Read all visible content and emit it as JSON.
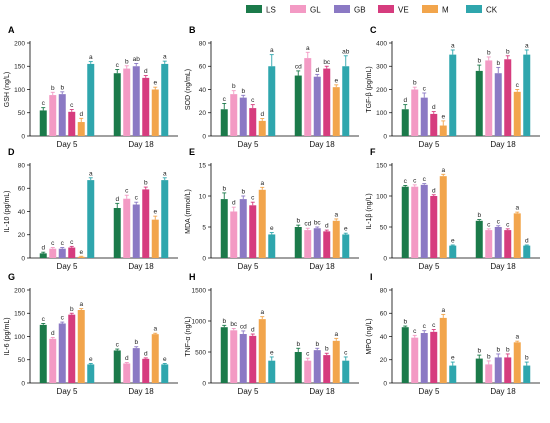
{
  "legend": [
    {
      "name": "LS",
      "color": "#1b7a4a"
    },
    {
      "name": "GL",
      "color": "#f39ac4"
    },
    {
      "name": "GB",
      "color": "#8b79c4"
    },
    {
      "name": "VE",
      "color": "#d63c7e"
    },
    {
      "name": "M",
      "color": "#f2a54c"
    },
    {
      "name": "CK",
      "color": "#2fa6ad"
    }
  ],
  "chart_data": [
    {
      "type": "bar",
      "panel": "A",
      "ylabel": "GSH (ng/L)",
      "categories": [
        "Day 5",
        "Day 18"
      ],
      "ylim": [
        0,
        200
      ],
      "ticks": [
        0,
        50,
        100,
        150,
        200
      ],
      "series": [
        {
          "name": "LS",
          "values": [
            55,
            135
          ],
          "err": [
            6,
            8
          ],
          "sig": [
            "c",
            "c"
          ]
        },
        {
          "name": "GL",
          "values": [
            88,
            145
          ],
          "err": [
            6,
            6
          ],
          "sig": [
            "b",
            "b"
          ]
        },
        {
          "name": "GB",
          "values": [
            90,
            150
          ],
          "err": [
            5,
            6
          ],
          "sig": [
            "b",
            "ab"
          ]
        },
        {
          "name": "VE",
          "values": [
            52,
            125
          ],
          "err": [
            5,
            5
          ],
          "sig": [
            "c",
            "d"
          ]
        },
        {
          "name": "M",
          "values": [
            30,
            100
          ],
          "err": [
            8,
            5
          ],
          "sig": [
            "d",
            "e"
          ]
        },
        {
          "name": "CK",
          "values": [
            155,
            155
          ],
          "err": [
            5,
            6
          ],
          "sig": [
            "a",
            "a"
          ]
        }
      ]
    },
    {
      "type": "bar",
      "panel": "B",
      "ylabel": "SOD (ng/mL)",
      "categories": [
        "Day 5",
        "Day 18"
      ],
      "ylim": [
        0,
        80
      ],
      "ticks": [
        0,
        20,
        40,
        60,
        80
      ],
      "series": [
        {
          "name": "LS",
          "values": [
            23,
            52
          ],
          "err": [
            5,
            4
          ],
          "sig": [
            "c",
            "cd"
          ]
        },
        {
          "name": "GL",
          "values": [
            36,
            67
          ],
          "err": [
            3,
            5
          ],
          "sig": [
            "b",
            "a"
          ]
        },
        {
          "name": "GB",
          "values": [
            33,
            51
          ],
          "err": [
            2,
            2
          ],
          "sig": [
            "b",
            "d"
          ]
        },
        {
          "name": "VE",
          "values": [
            24,
            58
          ],
          "err": [
            3,
            2
          ],
          "sig": [
            "c",
            "bc"
          ]
        },
        {
          "name": "M",
          "values": [
            13,
            42
          ],
          "err": [
            2,
            2
          ],
          "sig": [
            "d",
            "e"
          ]
        },
        {
          "name": "CK",
          "values": [
            60,
            60
          ],
          "err": [
            10,
            9
          ],
          "sig": [
            "a",
            "ab"
          ]
        }
      ]
    },
    {
      "type": "bar",
      "panel": "C",
      "ylabel": "TGF-β (pg/mL)",
      "categories": [
        "Day 5",
        "Day 18"
      ],
      "ylim": [
        0,
        400
      ],
      "ticks": [
        0,
        100,
        200,
        300,
        400
      ],
      "series": [
        {
          "name": "LS",
          "values": [
            115,
            280
          ],
          "err": [
            20,
            25
          ],
          "sig": [
            "d",
            "b"
          ]
        },
        {
          "name": "GL",
          "values": [
            200,
            325
          ],
          "err": [
            10,
            15
          ],
          "sig": [
            "b",
            "b"
          ]
        },
        {
          "name": "GB",
          "values": [
            165,
            270
          ],
          "err": [
            20,
            25
          ],
          "sig": [
            "c",
            "b"
          ]
        },
        {
          "name": "VE",
          "values": [
            95,
            330
          ],
          "err": [
            10,
            15
          ],
          "sig": [
            "d",
            "b"
          ]
        },
        {
          "name": "M",
          "values": [
            45,
            190
          ],
          "err": [
            20,
            10
          ],
          "sig": [
            "e",
            "c"
          ]
        },
        {
          "name": "CK",
          "values": [
            350,
            350
          ],
          "err": [
            20,
            20
          ],
          "sig": [
            "a",
            "a"
          ]
        }
      ]
    },
    {
      "type": "bar",
      "panel": "D",
      "ylabel": "IL-10 (pg/mL)",
      "categories": [
        "Day 5",
        "Day 18"
      ],
      "ylim": [
        0,
        80
      ],
      "ticks": [
        0,
        20,
        40,
        60,
        80
      ],
      "series": [
        {
          "name": "LS",
          "values": [
            4,
            43
          ],
          "err": [
            1,
            4
          ],
          "sig": [
            "d",
            "d"
          ]
        },
        {
          "name": "GL",
          "values": [
            8,
            51
          ],
          "err": [
            1,
            3
          ],
          "sig": [
            "c",
            "c"
          ]
        },
        {
          "name": "GB",
          "values": [
            8,
            46
          ],
          "err": [
            1,
            2
          ],
          "sig": [
            "c",
            "c"
          ]
        },
        {
          "name": "VE",
          "values": [
            9,
            59
          ],
          "err": [
            1,
            2
          ],
          "sig": [
            "c",
            "b"
          ]
        },
        {
          "name": "M",
          "values": [
            1,
            33
          ],
          "err": [
            0.5,
            3
          ],
          "sig": [
            "e",
            "e"
          ]
        },
        {
          "name": "CK",
          "values": [
            67,
            67
          ],
          "err": [
            2,
            2
          ],
          "sig": [
            "a",
            "a"
          ]
        }
      ]
    },
    {
      "type": "bar",
      "panel": "E",
      "ylabel": "MDA (mmol/L)",
      "categories": [
        "Day 5",
        "Day 18"
      ],
      "ylim": [
        0,
        15
      ],
      "ticks": [
        0,
        5,
        10,
        15
      ],
      "series": [
        {
          "name": "LS",
          "values": [
            9.5,
            5.0
          ],
          "err": [
            1.0,
            0.3
          ],
          "sig": [
            "b",
            "b"
          ]
        },
        {
          "name": "GL",
          "values": [
            7.5,
            4.5
          ],
          "err": [
            0.7,
            0.3
          ],
          "sig": [
            "d",
            "cd"
          ]
        },
        {
          "name": "GB",
          "values": [
            9.5,
            4.8
          ],
          "err": [
            0.5,
            0.2
          ],
          "sig": [
            "b",
            "bc"
          ]
        },
        {
          "name": "VE",
          "values": [
            8.5,
            4.3
          ],
          "err": [
            0.5,
            0.2
          ],
          "sig": [
            "c",
            "d"
          ]
        },
        {
          "name": "M",
          "values": [
            11.0,
            6.0
          ],
          "err": [
            0.4,
            0.3
          ],
          "sig": [
            "a",
            "a"
          ]
        },
        {
          "name": "CK",
          "values": [
            3.8,
            3.8
          ],
          "err": [
            0.3,
            0.2
          ],
          "sig": [
            "e",
            "e"
          ]
        }
      ]
    },
    {
      "type": "bar",
      "panel": "F",
      "ylabel": "IL-1β (ng/L)",
      "categories": [
        "Day 5",
        "Day 18"
      ],
      "ylim": [
        0,
        150
      ],
      "ticks": [
        0,
        50,
        100,
        150
      ],
      "series": [
        {
          "name": "LS",
          "values": [
            115,
            60
          ],
          "err": [
            2,
            2
          ],
          "sig": [
            "c",
            "b"
          ]
        },
        {
          "name": "GL",
          "values": [
            115,
            45
          ],
          "err": [
            3,
            2
          ],
          "sig": [
            "c",
            "c"
          ]
        },
        {
          "name": "GB",
          "values": [
            118,
            50
          ],
          "err": [
            2,
            2
          ],
          "sig": [
            "c",
            "c"
          ]
        },
        {
          "name": "VE",
          "values": [
            100,
            45
          ],
          "err": [
            2,
            2
          ],
          "sig": [
            "d",
            "c"
          ]
        },
        {
          "name": "M",
          "values": [
            132,
            72
          ],
          "err": [
            3,
            2
          ],
          "sig": [
            "a",
            "a"
          ]
        },
        {
          "name": "CK",
          "values": [
            20,
            20
          ],
          "err": [
            1,
            1
          ],
          "sig": [
            "e",
            "d"
          ]
        }
      ]
    },
    {
      "type": "bar",
      "panel": "G",
      "ylabel": "IL-6 (pg/mL)",
      "categories": [
        "Day 5",
        "Day 18"
      ],
      "ylim": [
        0,
        200
      ],
      "ticks": [
        0,
        50,
        100,
        150,
        200
      ],
      "series": [
        {
          "name": "LS",
          "values": [
            125,
            70
          ],
          "err": [
            3,
            3
          ],
          "sig": [
            "c",
            "c"
          ]
        },
        {
          "name": "GL",
          "values": [
            95,
            42
          ],
          "err": [
            3,
            2
          ],
          "sig": [
            "d",
            "d"
          ]
        },
        {
          "name": "GB",
          "values": [
            128,
            75
          ],
          "err": [
            3,
            3
          ],
          "sig": [
            "c",
            "b"
          ]
        },
        {
          "name": "VE",
          "values": [
            147,
            52
          ],
          "err": [
            3,
            2
          ],
          "sig": [
            "b",
            "d"
          ]
        },
        {
          "name": "M",
          "values": [
            157,
            105
          ],
          "err": [
            3,
            2
          ],
          "sig": [
            "a",
            "a"
          ]
        },
        {
          "name": "CK",
          "values": [
            40,
            40
          ],
          "err": [
            2,
            2
          ],
          "sig": [
            "e",
            "e"
          ]
        }
      ]
    },
    {
      "type": "bar",
      "panel": "H",
      "ylabel": "TNF-α (ng/L)",
      "categories": [
        "Day 5",
        "Day 18"
      ],
      "ylim": [
        0,
        1500
      ],
      "ticks": [
        0,
        500,
        1000,
        1500
      ],
      "series": [
        {
          "name": "LS",
          "values": [
            900,
            500
          ],
          "err": [
            30,
            60
          ],
          "sig": [
            "b",
            "b"
          ]
        },
        {
          "name": "GL",
          "values": [
            850,
            360
          ],
          "err": [
            30,
            40
          ],
          "sig": [
            "bc",
            "c"
          ]
        },
        {
          "name": "GB",
          "values": [
            790,
            530
          ],
          "err": [
            50,
            30
          ],
          "sig": [
            "cd",
            "b"
          ]
        },
        {
          "name": "VE",
          "values": [
            760,
            450
          ],
          "err": [
            30,
            30
          ],
          "sig": [
            "d",
            "b"
          ]
        },
        {
          "name": "M",
          "values": [
            1030,
            680
          ],
          "err": [
            40,
            40
          ],
          "sig": [
            "a",
            "a"
          ]
        },
        {
          "name": "CK",
          "values": [
            360,
            360
          ],
          "err": [
            60,
            60
          ],
          "sig": [
            "e",
            "c"
          ]
        }
      ]
    },
    {
      "type": "bar",
      "panel": "I",
      "ylabel": "MPO (ng/L)",
      "categories": [
        "Day 5",
        "Day 18"
      ],
      "ylim": [
        0,
        80
      ],
      "ticks": [
        0,
        20,
        40,
        60,
        80
      ],
      "series": [
        {
          "name": "LS",
          "values": [
            48,
            21
          ],
          "err": [
            1,
            3
          ],
          "sig": [
            "b",
            "b"
          ]
        },
        {
          "name": "GL",
          "values": [
            39,
            16
          ],
          "err": [
            2,
            3
          ],
          "sig": [
            "c",
            "b"
          ]
        },
        {
          "name": "GB",
          "values": [
            43,
            22
          ],
          "err": [
            2,
            3
          ],
          "sig": [
            "c",
            "b"
          ]
        },
        {
          "name": "VE",
          "values": [
            44,
            22
          ],
          "err": [
            2,
            3
          ],
          "sig": [
            "c",
            "b"
          ]
        },
        {
          "name": "M",
          "values": [
            56,
            35
          ],
          "err": [
            3,
            1
          ],
          "sig": [
            "a",
            "a"
          ]
        },
        {
          "name": "CK",
          "values": [
            15,
            15
          ],
          "err": [
            3,
            3
          ],
          "sig": [
            "e",
            "b"
          ]
        }
      ]
    }
  ]
}
